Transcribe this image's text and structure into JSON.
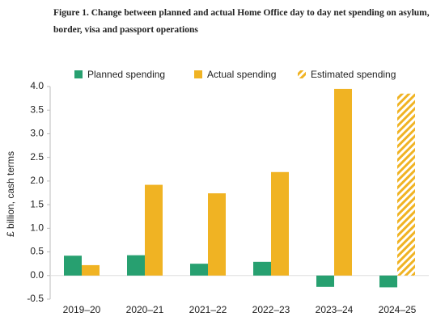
{
  "chart_data": {
    "type": "bar",
    "title": "Figure 1. Change between planned and actual Home Office day to day net spending on asylum, border, visa and passport operations",
    "y_label": "£ billion, cash terms",
    "categories": [
      "2019–20",
      "2020–21",
      "2021–22",
      "2022–23",
      "2023–24",
      "2024–25"
    ],
    "series": [
      {
        "name": "Planned spending",
        "color": "#27a070",
        "values": [
          0.42,
          0.43,
          0.25,
          0.29,
          -0.24,
          -0.25
        ]
      },
      {
        "name": "Actual spending",
        "color": "#f0b323",
        "values": [
          0.22,
          1.92,
          1.74,
          2.19,
          3.95,
          null
        ]
      },
      {
        "name": "Estimated spending",
        "color": "#f0b323",
        "pattern": "hatch",
        "values": [
          null,
          null,
          null,
          null,
          null,
          3.85
        ]
      }
    ],
    "ylim": [
      -0.5,
      4.0
    ],
    "yticks": [
      -0.5,
      {
        "value": 0,
        "label": "0.0"
      },
      0.5,
      {
        "value": 1,
        "label": "1.0"
      },
      1.5,
      {
        "value": 2,
        "label": "2.0"
      },
      2.5,
      {
        "value": 3,
        "label": "3.0"
      },
      3.5,
      {
        "value": 4,
        "label": "4.0"
      }
    ],
    "grid": false,
    "legend": "top"
  }
}
